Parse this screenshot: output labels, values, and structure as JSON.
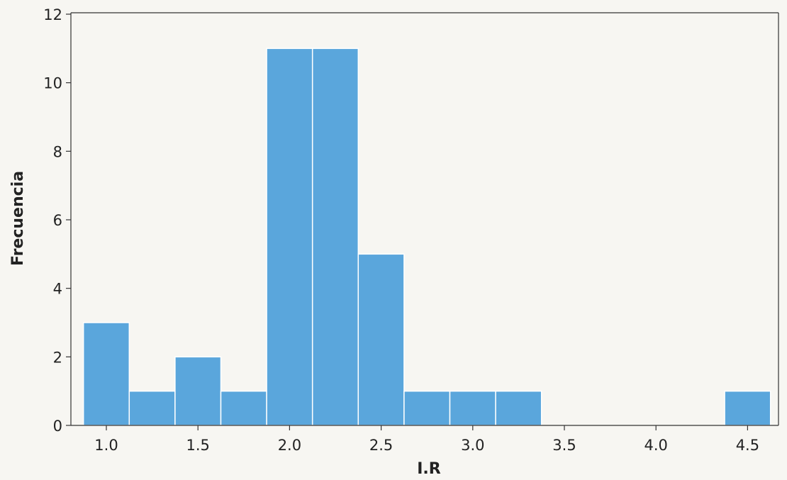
{
  "chart_data": {
    "type": "bar",
    "subtype": "histogram",
    "xlabel": "I.R",
    "ylabel": "Frecuencia",
    "xlim": [
      0.9,
      4.6
    ],
    "ylim": [
      0,
      12
    ],
    "bin_width": 0.25,
    "bins": [
      {
        "x_start": 0.875,
        "x_end": 1.125,
        "count": 3
      },
      {
        "x_start": 1.125,
        "x_end": 1.375,
        "count": 1
      },
      {
        "x_start": 1.375,
        "x_end": 1.625,
        "count": 2
      },
      {
        "x_start": 1.625,
        "x_end": 1.875,
        "count": 1
      },
      {
        "x_start": 1.875,
        "x_end": 2.125,
        "count": 11
      },
      {
        "x_start": 2.125,
        "x_end": 2.375,
        "count": 11
      },
      {
        "x_start": 2.375,
        "x_end": 2.625,
        "count": 5
      },
      {
        "x_start": 2.625,
        "x_end": 2.875,
        "count": 1
      },
      {
        "x_start": 2.875,
        "x_end": 3.125,
        "count": 1
      },
      {
        "x_start": 3.125,
        "x_end": 3.375,
        "count": 1
      },
      {
        "x_start": 4.375,
        "x_end": 4.625,
        "count": 1
      }
    ],
    "x_ticks": [
      {
        "value": 1.0,
        "label": "1.0"
      },
      {
        "value": 1.5,
        "label": "1.5"
      },
      {
        "value": 2.0,
        "label": "2.0"
      },
      {
        "value": 2.5,
        "label": "2.5"
      },
      {
        "value": 3.0,
        "label": "3.0"
      },
      {
        "value": 3.5,
        "label": "3.5"
      },
      {
        "value": 4.0,
        "label": "4.0"
      },
      {
        "value": 4.5,
        "label": "4.5"
      }
    ],
    "y_ticks": [
      {
        "value": 0,
        "label": "0"
      },
      {
        "value": 2,
        "label": "2"
      },
      {
        "value": 4,
        "label": "4"
      },
      {
        "value": 6,
        "label": "6"
      },
      {
        "value": 8,
        "label": "8"
      },
      {
        "value": 10,
        "label": "10"
      },
      {
        "value": 12,
        "label": "12"
      }
    ],
    "grid": false,
    "bar_color": "#5aa6dc",
    "bar_edge_color": "#ffffff"
  }
}
